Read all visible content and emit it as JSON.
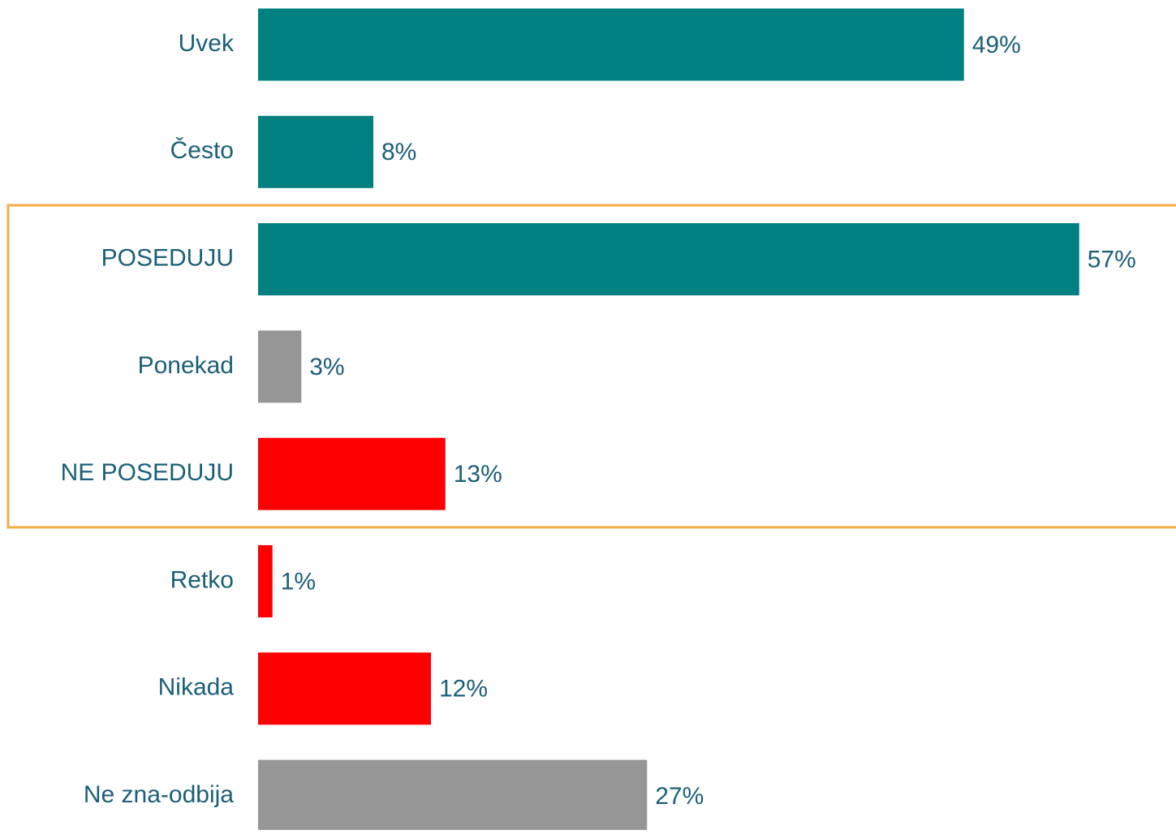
{
  "chart_data": {
    "type": "bar",
    "orientation": "horizontal",
    "categories": [
      "Uvek",
      "Često",
      "POSEDUJU",
      "Ponekad",
      "NE POSEDUJU",
      "Retko",
      "Nikada",
      "Ne zna-odbija"
    ],
    "values": [
      49,
      8,
      57,
      3,
      13,
      1,
      12,
      27
    ],
    "value_labels": [
      "49%",
      "8%",
      "57%",
      "3%",
      "13%",
      "1%",
      "12%",
      "27%"
    ],
    "colors": [
      "#008080",
      "#008080",
      "#008080",
      "#969696",
      "#ff0000",
      "#ff0000",
      "#ff0000",
      "#969696"
    ]
  }
}
